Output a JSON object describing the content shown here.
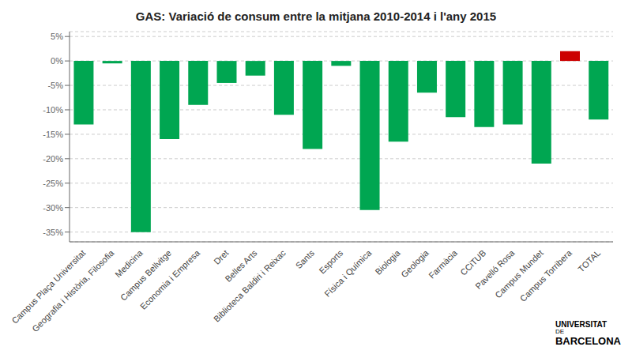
{
  "chart_data": {
    "type": "bar",
    "title": "GAS: Variació de consum entre la mitjana 2010-2014 i l'any 2015",
    "categories": [
      "Campus Plaça Universitat",
      "Geografia i Història, Filosofia",
      "Medicina",
      "Campus Bellvitge",
      "Economia i Empresa",
      "Dret",
      "Belles Arts",
      "Biblioteca Baldiri i Reixac",
      "Sants",
      "Esports",
      "Física i Química",
      "Biologia",
      "Geologia",
      "Farmàcia",
      "CCiTUB",
      "Pavelló Rosa",
      "Campus Mundet",
      "Campus Torribera",
      "TOTAL"
    ],
    "values": [
      -13.0,
      -0.5,
      -35.0,
      -16.0,
      -9.0,
      -4.5,
      -3.0,
      -11.0,
      -18.0,
      -1.0,
      -30.5,
      -16.5,
      -6.5,
      -11.5,
      -13.5,
      -13.0,
      -21.0,
      2.0,
      -12.0
    ],
    "colors": [
      "#00a651",
      "#00a651",
      "#00a651",
      "#00a651",
      "#00a651",
      "#00a651",
      "#00a651",
      "#00a651",
      "#00a651",
      "#00a651",
      "#00a651",
      "#00a651",
      "#00a651",
      "#00a651",
      "#00a651",
      "#00a651",
      "#00a651",
      "#cc0000",
      "#00a651"
    ],
    "ylim": [
      -37,
      6
    ],
    "yticks": [
      {
        "value": 5,
        "label": "5%"
      },
      {
        "value": 0,
        "label": "0%"
      },
      {
        "value": -5,
        "label": "-5%"
      },
      {
        "value": -10,
        "label": "-10%"
      },
      {
        "value": -15,
        "label": "-15%"
      },
      {
        "value": -20,
        "label": "-20%"
      },
      {
        "value": -25,
        "label": "-25%"
      },
      {
        "value": -30,
        "label": "-30%"
      },
      {
        "value": -35,
        "label": "-35%"
      }
    ],
    "grid": true,
    "annotations": [
      "UNIVERSITAT",
      "DE",
      "BARCELONA"
    ]
  }
}
